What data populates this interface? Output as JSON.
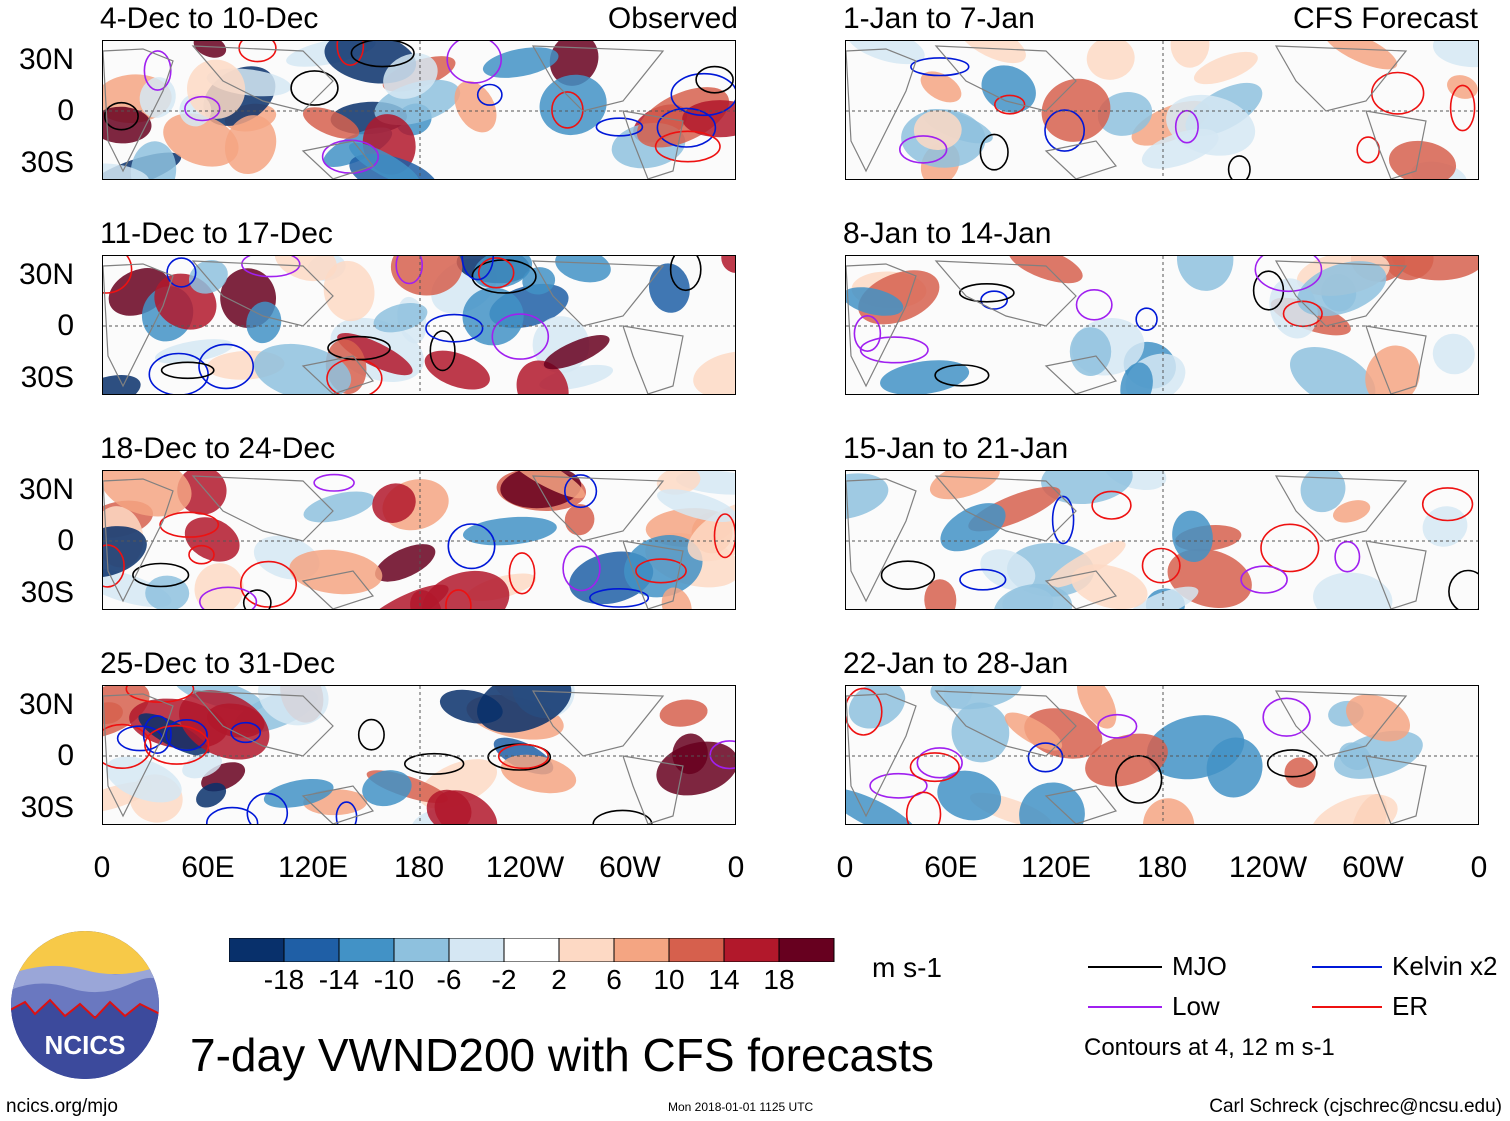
{
  "panels": {
    "observed_label": "Observed",
    "forecast_label": "CFS Forecast",
    "left": [
      {
        "title": "4-Dec to 10-Dec"
      },
      {
        "title": "11-Dec to 17-Dec"
      },
      {
        "title": "18-Dec to 24-Dec"
      },
      {
        "title": "25-Dec to 31-Dec"
      }
    ],
    "right": [
      {
        "title": "1-Jan to 7-Jan"
      },
      {
        "title": "8-Jan to 14-Jan"
      },
      {
        "title": "15-Jan to 21-Jan"
      },
      {
        "title": "22-Jan to 28-Jan"
      }
    ]
  },
  "axes": {
    "lat_labels": [
      "30N",
      "0",
      "30S"
    ],
    "lon_labels": [
      "0",
      "60E",
      "120E",
      "180",
      "120W",
      "60W",
      "0"
    ]
  },
  "colorbar": {
    "labels": [
      "-18",
      "-14",
      "-10",
      "-6",
      "-2",
      "2",
      "6",
      "10",
      "14",
      "18"
    ],
    "colors": [
      "#08306b",
      "#1f5fa6",
      "#4292c6",
      "#8ec1de",
      "#d5e7f3",
      "#ffffff",
      "#fdd9c4",
      "#f4a582",
      "#d6604d",
      "#b2182b",
      "#67001f"
    ],
    "units": "m s-1"
  },
  "legend": {
    "items": [
      {
        "label": "MJO",
        "color": "#000000"
      },
      {
        "label": "Kelvin x2",
        "color": "#0018d8"
      },
      {
        "label": "Low",
        "color": "#a020f0"
      },
      {
        "label": "ER",
        "color": "#ee1111"
      }
    ],
    "contour_note": "Contours at 4, 12 m s-1"
  },
  "title": "7-day VWND200 with CFS forecasts",
  "logo_text": "NCICS",
  "footer": {
    "website": "ncics.org/mjo",
    "timestamp": "Mon 2018-01-01 1125 UTC",
    "author": "Carl Schreck (cjschrec@ncsu.edu)"
  }
}
